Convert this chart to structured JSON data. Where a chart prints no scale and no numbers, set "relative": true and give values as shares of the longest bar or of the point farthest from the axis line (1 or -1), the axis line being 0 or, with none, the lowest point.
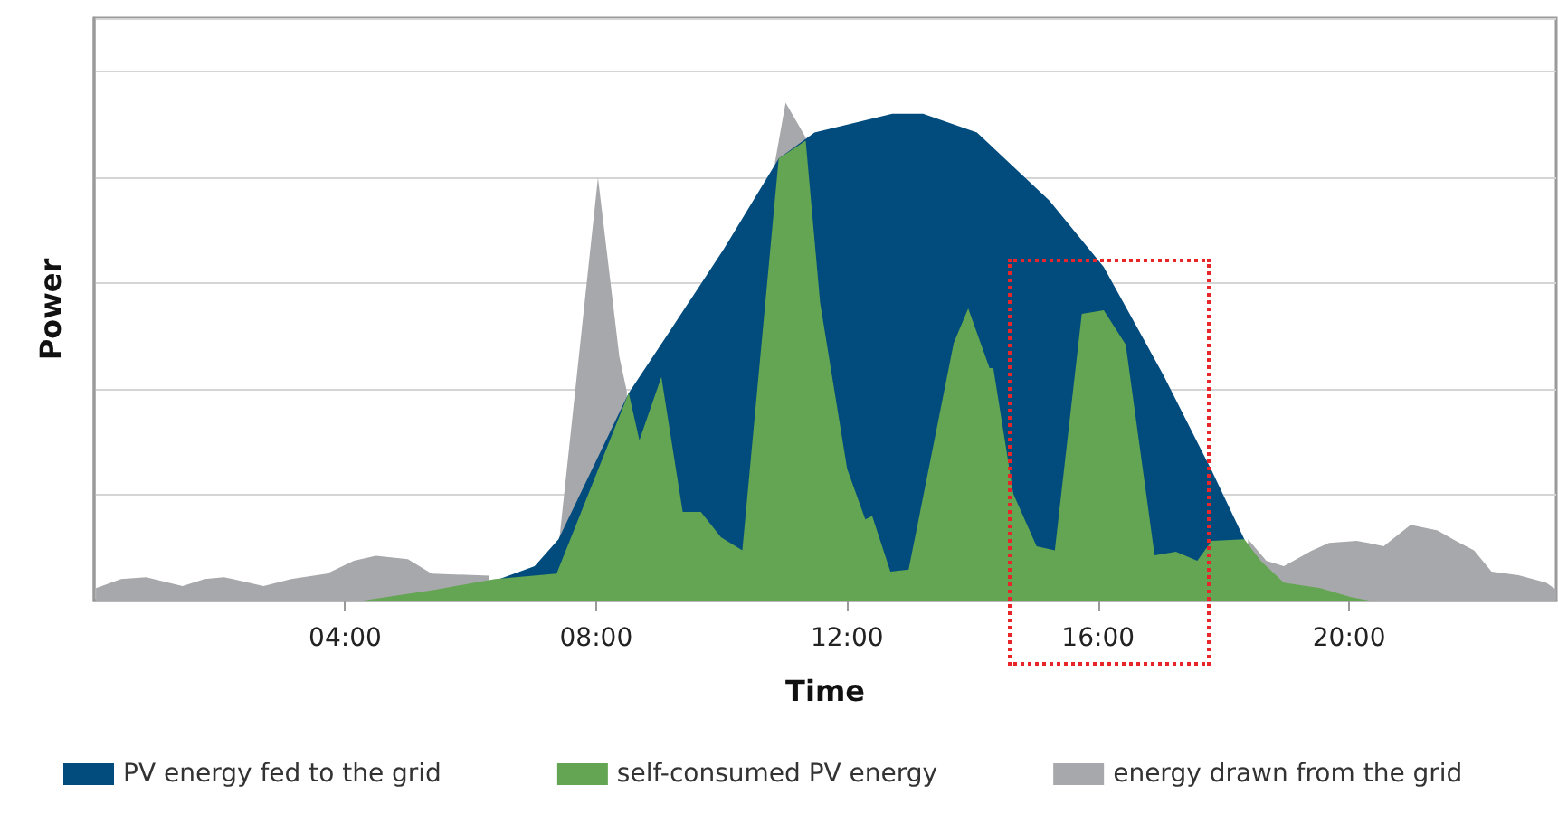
{
  "chart_data": {
    "type": "area",
    "relative": true,
    "xlabel": "Time",
    "ylabel": "Power",
    "xlim": [
      0,
      23.3
    ],
    "xticks": [
      {
        "value": 4,
        "label": "04:00"
      },
      {
        "value": 8,
        "label": "08:00"
      },
      {
        "value": 12,
        "label": "12:00"
      },
      {
        "value": 16,
        "label": "16:00"
      },
      {
        "value": 20,
        "label": "20:00"
      }
    ],
    "grid": "y",
    "legend": "bottom",
    "marker": "none",
    "series": [
      {
        "name": "PV energy fed to the grid",
        "color": "#024b7d",
        "x": [
          6.39,
          7.02,
          7.4,
          8.52,
          9.09,
          10.04,
          10.91,
          11.48,
          12.72,
          13.21,
          14.07,
          15.22,
          16.09,
          17.04,
          17.81,
          18.33,
          18.53
        ],
        "values": [
          0.04,
          0.069,
          0.123,
          0.417,
          0.525,
          0.707,
          0.888,
          0.94,
          0.978,
          0.978,
          0.94,
          0.804,
          0.67,
          0.453,
          0.261,
          0.123,
          0
        ]
      },
      {
        "name": "self-consumed PV energy",
        "color": "#64a553",
        "x": [
          4.29,
          5.44,
          6.39,
          7.37,
          8.52,
          8.69,
          9.04,
          9.38,
          9.67,
          9.99,
          10.33,
          10.91,
          11.34,
          11.57,
          12.0,
          12.29,
          12.4,
          12.69,
          12.98,
          13.7,
          13.93,
          14.27,
          14.33,
          14.65,
          15.02,
          15.31,
          15.74,
          16.09,
          16.44,
          16.9,
          17.24,
          17.58,
          17.81,
          18.33,
          18.59,
          18.96,
          19.54,
          20.03,
          20.32
        ],
        "values": [
          0,
          0.022,
          0.043,
          0.054,
          0.417,
          0.322,
          0.449,
          0.178,
          0.178,
          0.127,
          0.101,
          0.888,
          0.924,
          0.598,
          0.265,
          0.163,
          0.17,
          0.058,
          0.062,
          0.518,
          0.587,
          0.467,
          0.467,
          0.214,
          0.109,
          0.101,
          0.576,
          0.583,
          0.514,
          0.091,
          0.098,
          0.08,
          0.12,
          0.123,
          0.08,
          0.036,
          0.025,
          0.007,
          0
        ]
      },
      {
        "name": "energy drawn from the grid",
        "color": "#a7a8ab",
        "x": [
          0.03,
          0.43,
          0.83,
          1.41,
          1.76,
          2.07,
          2.7,
          3.14,
          3.71,
          4.14,
          4.49,
          5.0,
          5.38,
          6.3,
          7.2,
          7.42,
          8.03,
          8.37,
          8.49,
          8.7,
          10.85,
          11.02,
          11.34,
          11.6,
          18.39,
          18.68,
          18.96,
          19.4,
          19.68,
          20.12,
          20.3,
          20.55,
          20.98,
          21.41,
          21.7,
          21.99,
          22.27,
          22.7,
          23.14,
          23.3
        ],
        "values": [
          0.025,
          0.043,
          0.047,
          0.029,
          0.043,
          0.047,
          0.029,
          0.043,
          0.054,
          0.08,
          0.09,
          0.083,
          0.054,
          0.05,
          null,
          0.13,
          0.85,
          0.49,
          0.42,
          null,
          0.88,
          1.0,
          0.93,
          null,
          0.123,
          0.08,
          0.069,
          0.1,
          0.116,
          0.12,
          0.116,
          0.109,
          0.152,
          0.141,
          0.12,
          0.101,
          0.058,
          0.051,
          0.036,
          0.022
        ]
      }
    ]
  }
}
